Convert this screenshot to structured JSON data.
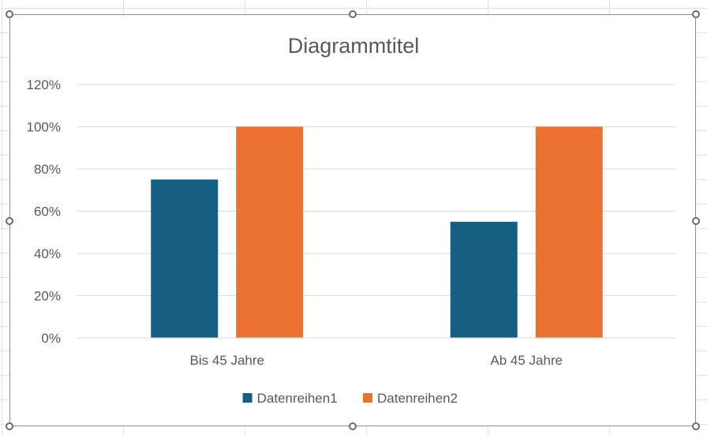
{
  "chart_data": {
    "type": "bar",
    "title": "Diagrammtitel",
    "categories": [
      "Bis 45 Jahre",
      "Ab 45 Jahre"
    ],
    "series": [
      {
        "name": "Datenreihen1",
        "values": [
          0.75,
          0.55
        ],
        "color": "#156082"
      },
      {
        "name": "Datenreihen2",
        "values": [
          1.0,
          1.0
        ],
        "color": "#E97132"
      }
    ],
    "ylim": [
      0,
      1.2
    ],
    "yticks": [
      "0%",
      "20%",
      "40%",
      "60%",
      "80%",
      "100%",
      "120%"
    ],
    "grid": true,
    "legend": "bottom"
  }
}
